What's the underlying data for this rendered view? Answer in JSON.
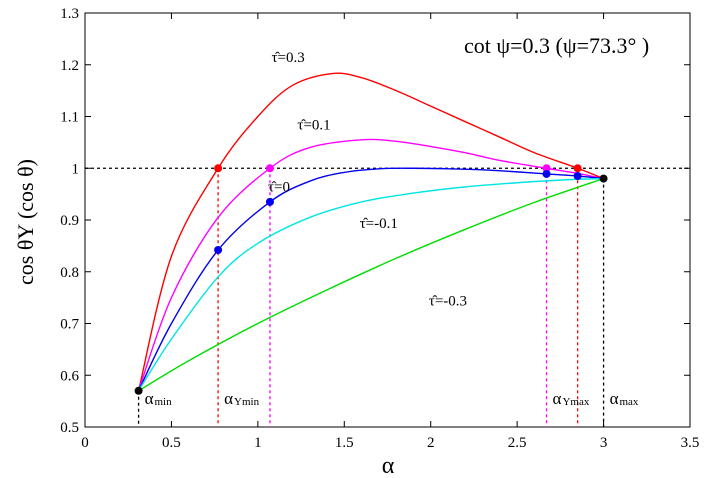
{
  "chart_data": {
    "type": "line",
    "title": "",
    "xlabel": "α",
    "ylabel": "cos θY (cos θ)",
    "xlim": [
      0,
      3.5
    ],
    "ylim": [
      0.5,
      1.3
    ],
    "xticks": [
      0,
      0.5,
      1,
      1.5,
      2,
      2.5,
      3,
      3.5
    ],
    "yticks": [
      0.5,
      0.6,
      0.7,
      0.8,
      0.9,
      1.0,
      1.1,
      1.2,
      1.3
    ],
    "xtick_labels": [
      "0",
      "0.5",
      "1",
      "1.5",
      "2",
      "2.5",
      "3",
      "3.5"
    ],
    "ytick_labels": [
      "0.5",
      "0.6",
      "0.7",
      "0.8",
      "0.9",
      "1",
      "1.1",
      "1.2",
      "1.3"
    ],
    "annotation": "cot ψ=0.3 (ψ=73.3° )",
    "reference_line": 1.0,
    "series": [
      {
        "name": "τ̂=0.3",
        "color": "#ff0000",
        "x": [
          0.31,
          0.5,
          0.77,
          1.0,
          1.2,
          1.43,
          1.6,
          1.8,
          2.0,
          2.2,
          2.4,
          2.6,
          2.85,
          3.0
        ],
        "y": [
          0.57,
          0.83,
          1.0,
          1.1,
          1.16,
          1.183,
          1.175,
          1.15,
          1.12,
          1.09,
          1.06,
          1.03,
          1.0,
          0.98
        ]
      },
      {
        "name": "τ̂=0.1",
        "color": "#ff00ff",
        "x": [
          0.31,
          0.5,
          0.77,
          1.07,
          1.3,
          1.6,
          1.8,
          2.0,
          2.2,
          2.4,
          2.67,
          2.85,
          3.0
        ],
        "y": [
          0.57,
          0.75,
          0.905,
          1.0,
          1.04,
          1.055,
          1.052,
          1.042,
          1.03,
          1.015,
          1.0,
          0.99,
          0.98
        ]
      },
      {
        "name": "τ̂=0",
        "color": "#0000ee",
        "x": [
          0.31,
          0.5,
          0.77,
          1.07,
          1.3,
          1.5,
          1.7,
          1.9,
          2.1,
          2.3,
          2.5,
          2.67,
          2.85,
          3.0
        ],
        "y": [
          0.57,
          0.7,
          0.842,
          0.935,
          0.975,
          0.992,
          0.999,
          1.0,
          0.999,
          0.997,
          0.993,
          0.989,
          0.985,
          0.98
        ]
      },
      {
        "name": "τ̂=-0.1",
        "color": "#00e5e5",
        "x": [
          0.31,
          0.5,
          0.77,
          1.0,
          1.3,
          1.6,
          1.9,
          2.2,
          2.5,
          2.8,
          3.0
        ],
        "y": [
          0.57,
          0.67,
          0.79,
          0.855,
          0.905,
          0.935,
          0.952,
          0.964,
          0.972,
          0.978,
          0.98
        ]
      },
      {
        "name": "τ̂=-0.3",
        "color": "#00dd00",
        "x": [
          0.31,
          0.6,
          1.0,
          1.4,
          1.8,
          2.2,
          2.6,
          3.0
        ],
        "y": [
          0.57,
          0.628,
          0.7,
          0.765,
          0.826,
          0.882,
          0.934,
          0.98
        ]
      }
    ],
    "points": [
      {
        "series": "τ̂=0.3",
        "color": "#ff0000",
        "x": 0.77,
        "y": 1.0
      },
      {
        "series": "τ̂=0.3",
        "color": "#ff0000",
        "x": 2.85,
        "y": 1.0
      },
      {
        "series": "τ̂=0.1",
        "color": "#ff00ff",
        "x": 1.07,
        "y": 1.0
      },
      {
        "series": "τ̂=0.1",
        "color": "#ff00ff",
        "x": 2.67,
        "y": 1.0
      },
      {
        "series": "τ̂=0",
        "color": "#0000ee",
        "x": 0.77,
        "y": 0.842
      },
      {
        "series": "τ̂=0",
        "color": "#0000ee",
        "x": 1.07,
        "y": 0.935
      },
      {
        "series": "τ̂=0",
        "color": "#0000ee",
        "x": 2.67,
        "y": 0.989
      },
      {
        "series": "τ̂=0",
        "color": "#0000ee",
        "x": 2.85,
        "y": 0.985
      },
      {
        "series": "endpoint",
        "color": "#000000",
        "x": 0.31,
        "y": 0.57
      },
      {
        "series": "endpoint",
        "color": "#000000",
        "x": 3.0,
        "y": 0.98
      }
    ],
    "vlines": [
      {
        "x": 0.31,
        "y": 0.57,
        "color": "#000000",
        "label": "α",
        "sub": "min"
      },
      {
        "x": 0.77,
        "y": 1.0,
        "color": "#ff0000",
        "label": "α",
        "sub": "Ymin"
      },
      {
        "x": 1.07,
        "y": 1.0,
        "color": "#ff00ff",
        "label": "",
        "sub": ""
      },
      {
        "x": 2.67,
        "y": 1.0,
        "color": "#ff00ff",
        "label": "α",
        "sub": "Ymax"
      },
      {
        "x": 2.85,
        "y": 1.0,
        "color": "#ff0000",
        "label": "",
        "sub": ""
      },
      {
        "x": 3.0,
        "y": 0.98,
        "color": "#000000",
        "label": "α",
        "sub": "max"
      }
    ]
  }
}
